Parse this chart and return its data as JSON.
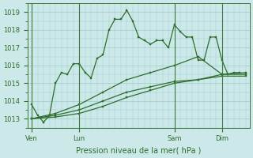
{
  "bg_color": "#cce8e8",
  "grid_color": "#99cccc",
  "line_color": "#2d6e2d",
  "title": "Pression niveau de la mer( hPa )",
  "ylim": [
    1012.5,
    1019.5
  ],
  "yticks": [
    1013,
    1014,
    1015,
    1016,
    1017,
    1018,
    1019
  ],
  "xtick_labels": [
    "Ven",
    "Lun",
    "Sam",
    "Dim"
  ],
  "xtick_positions": [
    0,
    24,
    72,
    96
  ],
  "vlines": [
    0,
    24,
    72,
    96
  ],
  "xlim": [
    -2,
    110
  ],
  "series1_x": [
    0,
    3,
    6,
    9,
    12,
    15,
    18,
    21,
    24,
    27,
    30,
    33,
    36,
    39,
    42,
    45,
    48,
    51,
    54,
    57,
    60,
    63,
    66,
    69,
    72,
    75,
    78,
    81,
    84,
    87,
    90,
    93,
    96,
    99,
    102,
    105
  ],
  "series1_y": [
    1013.8,
    1013.2,
    1012.8,
    1013.2,
    1015.0,
    1015.6,
    1015.5,
    1016.1,
    1016.1,
    1015.6,
    1015.3,
    1016.4,
    1016.6,
    1018.0,
    1018.6,
    1018.6,
    1019.1,
    1018.5,
    1017.6,
    1017.4,
    1017.2,
    1017.4,
    1017.4,
    1017.0,
    1018.3,
    1017.9,
    1017.6,
    1017.6,
    1016.3,
    1016.3,
    1017.6,
    1017.6,
    1016.3,
    1015.5,
    1015.6,
    1015.6
  ],
  "series2_x": [
    0,
    12,
    24,
    36,
    48,
    60,
    72,
    84,
    96,
    108
  ],
  "series2_y": [
    1013.0,
    1013.3,
    1013.8,
    1014.5,
    1015.2,
    1015.6,
    1016.0,
    1016.5,
    1015.5,
    1015.6
  ],
  "series3_x": [
    0,
    12,
    24,
    36,
    48,
    60,
    72,
    84,
    96,
    108
  ],
  "series3_y": [
    1013.0,
    1013.2,
    1013.5,
    1014.0,
    1014.5,
    1014.8,
    1015.1,
    1015.2,
    1015.4,
    1015.4
  ],
  "series4_x": [
    0,
    12,
    24,
    36,
    48,
    60,
    72,
    84,
    96,
    108
  ],
  "series4_y": [
    1013.0,
    1013.1,
    1013.3,
    1013.7,
    1014.2,
    1014.6,
    1015.0,
    1015.2,
    1015.5,
    1015.5
  ]
}
